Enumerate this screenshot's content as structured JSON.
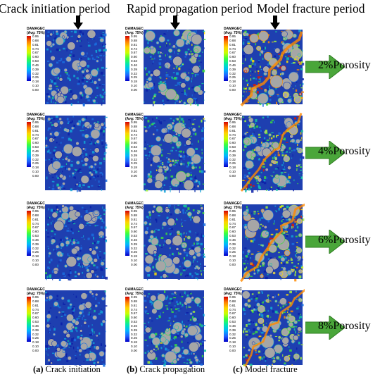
{
  "column_titles": [
    "Crack initiation period",
    "Rapid propagation period",
    "Model fracture period"
  ],
  "legend": {
    "title_line1": "DAMAGEC",
    "title_line2": "(Avg: 75%)",
    "ticks": [
      "0.95",
      "0.88",
      "0.81",
      "0.74",
      "0.67",
      "0.60",
      "0.53",
      "0.46",
      "0.39",
      "0.32",
      "0.25",
      "0.18",
      "0.10",
      "0.00"
    ]
  },
  "rows": [
    {
      "label": "2%Porosity",
      "intensity": [
        0.15,
        0.45,
        0.95
      ]
    },
    {
      "label": "4%Porosity",
      "intensity": [
        0.12,
        0.4,
        0.75
      ]
    },
    {
      "label": "6%Porosity",
      "intensity": [
        0.15,
        0.45,
        0.8
      ]
    },
    {
      "label": "8%Porosity",
      "intensity": [
        0.1,
        0.4,
        0.7
      ]
    }
  ],
  "captions": [
    {
      "letter": "(a)",
      "text": "Crack initiation"
    },
    {
      "letter": "(b)",
      "text": "Crack propagation"
    },
    {
      "letter": "(c)",
      "text": "Model fracture"
    }
  ],
  "colors": {
    "background_blue": "#1e3fb0",
    "particle_gray": "#a6a6a6",
    "arrow_green": "#4aa63a",
    "crack_orange": "#ff8a00"
  }
}
